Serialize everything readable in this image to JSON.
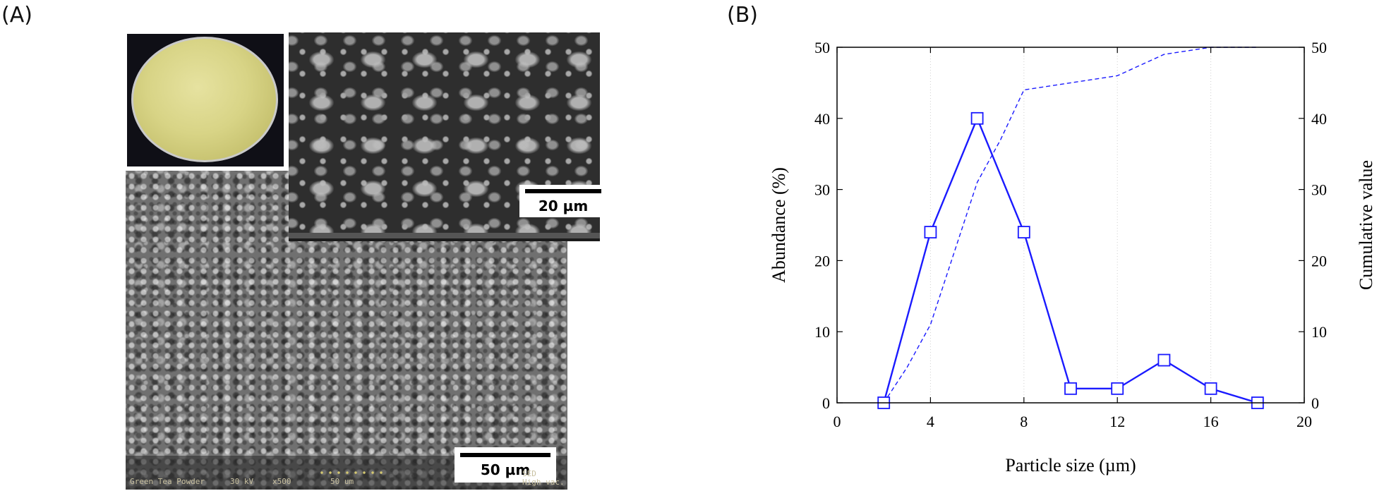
{
  "panels": {
    "a_label": "(A)",
    "b_label": "(B)"
  },
  "micrograph": {
    "scale_small": "20 µm",
    "scale_large": "50 µm",
    "info_sample": "Green Tea Powder",
    "info_kv": "30 kV",
    "info_mag": "x500",
    "info_scale": "50 um",
    "info_mode_1": "SED",
    "info_mode_2": "High vac."
  },
  "colors": {
    "series": "#1a1aff",
    "axis": "#000000",
    "grid": "#cfcfcf"
  },
  "chart_data": {
    "type": "line",
    "title": "",
    "xlabel": "Particle size (µm)",
    "ylabel": "Abundance (%)",
    "y2label": "Cumulative value",
    "xlim": [
      0,
      20
    ],
    "ylim": [
      0,
      50
    ],
    "y2lim": [
      0,
      50
    ],
    "xticks": [
      0,
      4,
      8,
      12,
      16,
      20
    ],
    "yticks": [
      0,
      10,
      20,
      30,
      40,
      50
    ],
    "y2ticks": [
      0,
      10,
      20,
      30,
      40,
      50
    ],
    "grid": "dotted vertical lines at x ticks",
    "legend": "none",
    "series": [
      {
        "axis": "left",
        "style": "solid line with open square markers",
        "x": [
          2,
          4,
          6,
          8,
          10,
          12,
          14,
          16,
          18
        ],
        "y": [
          0,
          24,
          40,
          24,
          2,
          2,
          6,
          2,
          0
        ]
      },
      {
        "axis": "right",
        "style": "dashed line",
        "x": [
          2,
          3,
          4,
          5,
          6,
          7,
          8,
          10,
          12,
          13,
          14,
          15,
          16,
          18
        ],
        "y": [
          0,
          5,
          11,
          21,
          31,
          37,
          44,
          45,
          46,
          47.5,
          49,
          49.5,
          50,
          50
        ]
      }
    ]
  }
}
